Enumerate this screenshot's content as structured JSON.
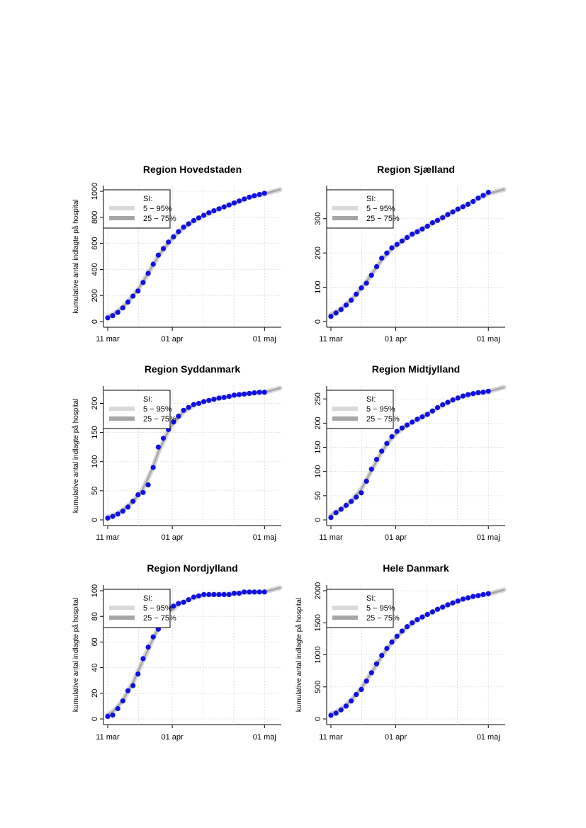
{
  "chart_data": [
    {
      "type": "line",
      "title": "Region Hovedstaden",
      "ylabel": "kumulative antal indlagte på hospital",
      "xlabel": "",
      "x_ticks": [
        "11 mar",
        "01 apr",
        "01 maj"
      ],
      "y_ticks": [
        0,
        200,
        400,
        600,
        800,
        1000
      ],
      "ylim": [
        0,
        1000
      ],
      "legend": {
        "title": "SI:",
        "items": [
          "5 − 95%",
          "25 − 75%"
        ],
        "position": "top-left"
      },
      "grid": true,
      "colors": {
        "points": "#1010e0",
        "band_outer": "#d9d9d9",
        "band_inner": "#a6a6a6"
      },
      "x": [
        0,
        2,
        4,
        6,
        8,
        10,
        12,
        14,
        16,
        18,
        20,
        22,
        24,
        26,
        28,
        30,
        32,
        34,
        36,
        38,
        40,
        42,
        44,
        46,
        48,
        50,
        52,
        54,
        56,
        58,
        60,
        62
      ],
      "series": [
        {
          "name": "observed",
          "values": [
            28,
            45,
            70,
            105,
            150,
            195,
            235,
            300,
            370,
            440,
            510,
            560,
            610,
            650,
            690,
            725,
            750,
            775,
            795,
            815,
            835,
            850,
            865,
            880,
            895,
            910,
            925,
            940,
            955,
            965,
            975,
            985
          ]
        }
      ]
    },
    {
      "type": "line",
      "title": "Region Sjælland",
      "ylabel": "",
      "xlabel": "",
      "x_ticks": [
        "11 mar",
        "01 apr",
        "01 maj"
      ],
      "y_ticks": [
        0,
        100,
        200,
        300
      ],
      "ylim": [
        0,
        380
      ],
      "legend": {
        "title": "SI:",
        "items": [
          "5 − 95%",
          "25 − 75%"
        ],
        "position": "top-left"
      },
      "grid": true,
      "colors": {
        "points": "#1010e0",
        "band_outer": "#d9d9d9",
        "band_inner": "#a6a6a6"
      },
      "x": [
        0,
        2,
        4,
        6,
        8,
        10,
        12,
        14,
        16,
        18,
        20,
        22,
        24,
        26,
        28,
        30,
        32,
        34,
        36,
        38,
        40,
        42,
        44,
        46,
        48,
        50,
        52,
        54,
        56,
        58,
        60,
        62
      ],
      "series": [
        {
          "name": "observed",
          "values": [
            15,
            25,
            35,
            48,
            62,
            80,
            98,
            112,
            135,
            160,
            185,
            200,
            215,
            225,
            235,
            245,
            255,
            262,
            270,
            278,
            288,
            295,
            303,
            312,
            320,
            328,
            335,
            342,
            350,
            360,
            368,
            377
          ]
        }
      ]
    },
    {
      "type": "line",
      "title": "Region Syddanmark",
      "ylabel": "kumulative antal indlagte på hospital",
      "xlabel": "",
      "x_ticks": [
        "11 mar",
        "01 apr",
        "01 maj"
      ],
      "y_ticks": [
        0,
        50,
        100,
        150,
        200
      ],
      "ylim": [
        0,
        220
      ],
      "legend": {
        "title": "SI:",
        "items": [
          "5 − 95%",
          "25 − 75%"
        ],
        "position": "top-left"
      },
      "grid": true,
      "colors": {
        "points": "#1010e0",
        "band_outer": "#d9d9d9",
        "band_inner": "#a6a6a6"
      },
      "x": [
        0,
        2,
        4,
        6,
        8,
        10,
        12,
        14,
        16,
        18,
        20,
        22,
        24,
        26,
        28,
        30,
        32,
        34,
        36,
        38,
        40,
        42,
        44,
        46,
        48,
        50,
        52,
        54,
        56,
        58,
        60,
        62
      ],
      "series": [
        {
          "name": "observed",
          "values": [
            3,
            6,
            10,
            15,
            22,
            32,
            43,
            47,
            60,
            90,
            125,
            140,
            155,
            168,
            178,
            188,
            193,
            198,
            200,
            203,
            205,
            207,
            209,
            210,
            212,
            214,
            215,
            216,
            217,
            218,
            219,
            219
          ]
        }
      ]
    },
    {
      "type": "line",
      "title": "Region Midtjylland",
      "ylabel": "",
      "xlabel": "",
      "x_ticks": [
        "11 mar",
        "01 apr",
        "01 maj"
      ],
      "y_ticks": [
        0,
        50,
        100,
        150,
        200,
        250
      ],
      "ylim": [
        0,
        265
      ],
      "legend": {
        "title": "SI:",
        "items": [
          "5 − 95%",
          "25 − 75%"
        ],
        "position": "top-left"
      },
      "grid": true,
      "colors": {
        "points": "#1010e0",
        "band_outer": "#d9d9d9",
        "band_inner": "#a6a6a6"
      },
      "x": [
        0,
        2,
        4,
        6,
        8,
        10,
        12,
        14,
        16,
        18,
        20,
        22,
        24,
        26,
        28,
        30,
        32,
        34,
        36,
        38,
        40,
        42,
        44,
        46,
        48,
        50,
        52,
        54,
        56,
        58,
        60,
        62
      ],
      "series": [
        {
          "name": "observed",
          "values": [
            5,
            15,
            22,
            30,
            38,
            47,
            56,
            80,
            105,
            125,
            142,
            158,
            172,
            183,
            190,
            196,
            202,
            208,
            213,
            218,
            225,
            232,
            238,
            243,
            248,
            252,
            256,
            259,
            261,
            263,
            264,
            266
          ]
        }
      ]
    },
    {
      "type": "line",
      "title": "Region Nordjylland",
      "ylabel": "kumulative antal indlagte på hospital",
      "xlabel": "",
      "x_ticks": [
        "11 mar",
        "01 apr",
        "01 maj"
      ],
      "y_ticks": [
        0,
        20,
        40,
        60,
        80,
        100
      ],
      "ylim": [
        0,
        100
      ],
      "legend": {
        "title": "SI:",
        "items": [
          "5 − 95%",
          "25 − 75%"
        ],
        "position": "top-left"
      },
      "grid": true,
      "colors": {
        "points": "#1010e0",
        "band_outer": "#d9d9d9",
        "band_inner": "#a6a6a6"
      },
      "x": [
        0,
        2,
        4,
        6,
        8,
        10,
        12,
        14,
        16,
        18,
        20,
        22,
        24,
        26,
        28,
        30,
        32,
        34,
        36,
        38,
        40,
        42,
        44,
        46,
        48,
        50,
        52,
        54,
        56,
        58,
        60,
        62
      ],
      "series": [
        {
          "name": "observed",
          "values": [
            2,
            3,
            8,
            14,
            22,
            26,
            35,
            47,
            56,
            64,
            70,
            76,
            87,
            88,
            90,
            91,
            93,
            95,
            96,
            97,
            97,
            97,
            97,
            97,
            97,
            98,
            98,
            99,
            99,
            99,
            99,
            99
          ]
        }
      ]
    },
    {
      "type": "line",
      "title": "Hele Danmark",
      "ylabel": "kumulative antal indlagte på hospital",
      "xlabel": "",
      "x_ticks": [
        "11 mar",
        "01 apr",
        "01 maj"
      ],
      "y_ticks": [
        0,
        500,
        1000,
        1500,
        2000
      ],
      "ylim": [
        0,
        2000
      ],
      "legend": {
        "title": "SI:",
        "items": [
          "5 − 95%",
          "25 − 75%"
        ],
        "position": "top-left"
      },
      "grid": true,
      "colors": {
        "points": "#1010e0",
        "band_outer": "#d9d9d9",
        "band_inner": "#a6a6a6"
      },
      "x": [
        0,
        2,
        4,
        6,
        8,
        10,
        12,
        14,
        16,
        18,
        20,
        22,
        24,
        26,
        28,
        30,
        32,
        34,
        36,
        38,
        40,
        42,
        44,
        46,
        48,
        50,
        52,
        54,
        56,
        58,
        60,
        62
      ],
      "series": [
        {
          "name": "observed",
          "values": [
            55,
            90,
            140,
            200,
            280,
            380,
            460,
            590,
            720,
            860,
            990,
            1100,
            1200,
            1290,
            1370,
            1440,
            1500,
            1550,
            1590,
            1630,
            1670,
            1710,
            1745,
            1780,
            1810,
            1840,
            1870,
            1890,
            1910,
            1925,
            1940,
            1955
          ]
        }
      ]
    }
  ]
}
